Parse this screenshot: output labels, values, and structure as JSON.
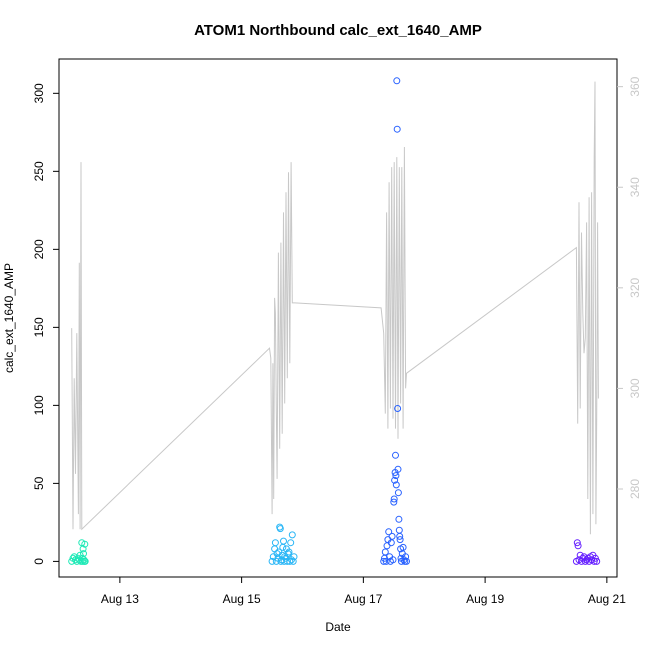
{
  "chart_data": {
    "type": "scatter",
    "title": "ATOM1 Northbound calc_ext_1640_AMP",
    "xlabel": "Date",
    "ylabel": "calc_ext_1640_AMP",
    "x_ticks": [
      "Aug 13",
      "Aug 15",
      "Aug 17",
      "Aug 19",
      "Aug 21"
    ],
    "y_ticks": [
      "0",
      "50",
      "100",
      "150",
      "200",
      "250",
      "300"
    ],
    "y2_ticks": [
      "280",
      "300",
      "320",
      "340",
      "360"
    ],
    "xlim": [
      "2023-08-12T00:00",
      "2023-08-21T04:00"
    ],
    "ylim": [
      -10,
      322
    ],
    "y2lim": [
      262.5,
      365.5
    ],
    "grid": false,
    "line_color": "#c8c8c8",
    "secondary_axis_color": "#c8c8c8",
    "scatter_series": [
      {
        "color": "#1de9b6",
        "points": [
          [
            "2023-08-12T05:00",
            0
          ],
          [
            "2023-08-12T05:30",
            2
          ],
          [
            "2023-08-12T06:00",
            3
          ],
          [
            "2023-08-12T06:30",
            1
          ],
          [
            "2023-08-12T07:00",
            0
          ],
          [
            "2023-08-12T07:30",
            2
          ],
          [
            "2023-08-12T08:00",
            1
          ],
          [
            "2023-08-12T08:20",
            4
          ],
          [
            "2023-08-12T08:40",
            0
          ],
          [
            "2023-08-12T09:00",
            12
          ],
          [
            "2023-08-12T09:10",
            2
          ],
          [
            "2023-08-12T09:20",
            0
          ],
          [
            "2023-08-12T09:30",
            8
          ],
          [
            "2023-08-12T09:40",
            5
          ],
          [
            "2023-08-12T09:50",
            1
          ],
          [
            "2023-08-12T10:00",
            0
          ],
          [
            "2023-08-12T10:10",
            11
          ],
          [
            "2023-08-12T10:20",
            0
          ]
        ]
      },
      {
        "color": "#29b6f6",
        "points": [
          [
            "2023-08-15T12:00",
            0
          ],
          [
            "2023-08-15T12:30",
            3
          ],
          [
            "2023-08-15T13:00",
            8
          ],
          [
            "2023-08-15T13:20",
            12
          ],
          [
            "2023-08-15T13:40",
            0
          ],
          [
            "2023-08-15T14:00",
            5
          ],
          [
            "2023-08-15T14:20",
            2
          ],
          [
            "2023-08-15T14:40",
            6
          ],
          [
            "2023-08-15T15:00",
            22
          ],
          [
            "2023-08-15T15:15",
            21
          ],
          [
            "2023-08-15T15:30",
            0
          ],
          [
            "2023-08-15T15:45",
            1
          ],
          [
            "2023-08-15T16:00",
            4
          ],
          [
            "2023-08-15T16:15",
            9
          ],
          [
            "2023-08-15T16:30",
            13
          ],
          [
            "2023-08-15T16:45",
            0
          ],
          [
            "2023-08-15T17:00",
            3
          ],
          [
            "2023-08-15T17:20",
            2
          ],
          [
            "2023-08-15T17:40",
            8
          ],
          [
            "2023-08-15T18:00",
            0
          ],
          [
            "2023-08-15T18:20",
            5
          ],
          [
            "2023-08-15T18:40",
            6
          ],
          [
            "2023-08-15T19:00",
            0
          ],
          [
            "2023-08-15T19:20",
            12
          ],
          [
            "2023-08-15T19:40",
            1
          ],
          [
            "2023-08-15T20:00",
            17
          ],
          [
            "2023-08-15T20:20",
            0
          ],
          [
            "2023-08-15T20:40",
            3
          ]
        ]
      },
      {
        "color": "#2962ff",
        "points": [
          [
            "2023-08-17T08:00",
            0
          ],
          [
            "2023-08-17T08:20",
            2
          ],
          [
            "2023-08-17T08:40",
            6
          ],
          [
            "2023-08-17T09:00",
            0
          ],
          [
            "2023-08-17T09:20",
            10
          ],
          [
            "2023-08-17T09:40",
            14
          ],
          [
            "2023-08-17T10:00",
            19
          ],
          [
            "2023-08-17T10:20",
            3
          ],
          [
            "2023-08-17T10:40",
            0
          ],
          [
            "2023-08-17T11:00",
            12
          ],
          [
            "2023-08-17T11:20",
            16
          ],
          [
            "2023-08-17T11:40",
            1
          ],
          [
            "2023-08-17T12:00",
            38
          ],
          [
            "2023-08-17T12:10",
            40
          ],
          [
            "2023-08-17T12:20",
            52
          ],
          [
            "2023-08-17T12:30",
            57
          ],
          [
            "2023-08-17T12:40",
            68
          ],
          [
            "2023-08-17T12:50",
            55
          ],
          [
            "2023-08-17T13:00",
            49
          ],
          [
            "2023-08-17T13:10",
            308
          ],
          [
            "2023-08-17T13:20",
            277
          ],
          [
            "2023-08-17T13:30",
            98
          ],
          [
            "2023-08-17T13:40",
            59
          ],
          [
            "2023-08-17T13:50",
            44
          ],
          [
            "2023-08-17T14:00",
            27
          ],
          [
            "2023-08-17T14:10",
            20
          ],
          [
            "2023-08-17T14:20",
            16
          ],
          [
            "2023-08-17T14:30",
            14
          ],
          [
            "2023-08-17T14:40",
            8
          ],
          [
            "2023-08-17T14:50",
            2
          ],
          [
            "2023-08-17T15:00",
            0
          ],
          [
            "2023-08-17T15:20",
            5
          ],
          [
            "2023-08-17T15:40",
            9
          ],
          [
            "2023-08-17T16:00",
            1
          ],
          [
            "2023-08-17T16:20",
            0
          ],
          [
            "2023-08-17T16:40",
            3
          ],
          [
            "2023-08-17T17:00",
            0
          ]
        ]
      },
      {
        "color": "#651fff",
        "points": [
          [
            "2023-08-20T12:00",
            0
          ],
          [
            "2023-08-20T12:20",
            12
          ],
          [
            "2023-08-20T12:40",
            10
          ],
          [
            "2023-08-20T13:00",
            1
          ],
          [
            "2023-08-20T13:30",
            4
          ],
          [
            "2023-08-20T14:00",
            0
          ],
          [
            "2023-08-20T14:30",
            2
          ],
          [
            "2023-08-20T15:00",
            3
          ],
          [
            "2023-08-20T15:30",
            0
          ],
          [
            "2023-08-20T16:00",
            1
          ],
          [
            "2023-08-20T16:30",
            2
          ],
          [
            "2023-08-20T17:00",
            0
          ],
          [
            "2023-08-20T17:30",
            3
          ],
          [
            "2023-08-20T18:00",
            1
          ],
          [
            "2023-08-20T18:30",
            4
          ],
          [
            "2023-08-20T19:00",
            0
          ],
          [
            "2023-08-20T19:30",
            2
          ],
          [
            "2023-08-20T20:00",
            0
          ]
        ]
      }
    ],
    "line_series": {
      "axis": "right",
      "points": [
        [
          "2023-08-12T05:00",
          312
        ],
        [
          "2023-08-12T05:30",
          272
        ],
        [
          "2023-08-12T06:00",
          302
        ],
        [
          "2023-08-12T06:30",
          283
        ],
        [
          "2023-08-12T07:00",
          311
        ],
        [
          "2023-08-12T07:40",
          275
        ],
        [
          "2023-08-12T08:00",
          325
        ],
        [
          "2023-08-12T08:20",
          272
        ],
        [
          "2023-08-12T08:40",
          345
        ],
        [
          "2023-08-12T09:00",
          272
        ],
        [
          "2023-08-15T11:00",
          308
        ],
        [
          "2023-08-15T11:30",
          306
        ],
        [
          "2023-08-15T12:00",
          275
        ],
        [
          "2023-08-15T12:20",
          305
        ],
        [
          "2023-08-15T12:40",
          278
        ],
        [
          "2023-08-15T13:00",
          318
        ],
        [
          "2023-08-15T13:20",
          315
        ],
        [
          "2023-08-15T13:40",
          296
        ],
        [
          "2023-08-15T14:00",
          282
        ],
        [
          "2023-08-15T14:30",
          327
        ],
        [
          "2023-08-15T15:00",
          288
        ],
        [
          "2023-08-15T15:30",
          329
        ],
        [
          "2023-08-15T16:00",
          291
        ],
        [
          "2023-08-15T16:30",
          335
        ],
        [
          "2023-08-15T17:00",
          297
        ],
        [
          "2023-08-15T17:30",
          339
        ],
        [
          "2023-08-15T18:00",
          302
        ],
        [
          "2023-08-15T18:30",
          343
        ],
        [
          "2023-08-15T19:00",
          305
        ],
        [
          "2023-08-15T19:30",
          345
        ],
        [
          "2023-08-15T20:00",
          317
        ],
        [
          "2023-08-15T21:00",
          317
        ],
        [
          "2023-08-17T07:00",
          316
        ],
        [
          "2023-08-17T08:00",
          311
        ],
        [
          "2023-08-17T08:40",
          295
        ],
        [
          "2023-08-17T09:10",
          335
        ],
        [
          "2023-08-17T09:40",
          292
        ],
        [
          "2023-08-17T10:10",
          341
        ],
        [
          "2023-08-17T10:40",
          296
        ],
        [
          "2023-08-17T11:10",
          344
        ],
        [
          "2023-08-17T11:40",
          294
        ],
        [
          "2023-08-17T12:10",
          345
        ],
        [
          "2023-08-17T12:40",
          292
        ],
        [
          "2023-08-17T13:10",
          346
        ],
        [
          "2023-08-17T13:40",
          290
        ],
        [
          "2023-08-17T14:10",
          344
        ],
        [
          "2023-08-17T14:40",
          297
        ],
        [
          "2023-08-17T15:10",
          344
        ],
        [
          "2023-08-17T15:40",
          292
        ],
        [
          "2023-08-17T16:10",
          348
        ],
        [
          "2023-08-17T16:40",
          300
        ],
        [
          "2023-08-17T17:00",
          303
        ],
        [
          "2023-08-20T12:00",
          328
        ],
        [
          "2023-08-20T12:30",
          293
        ],
        [
          "2023-08-20T13:00",
          337
        ],
        [
          "2023-08-20T13:30",
          296
        ],
        [
          "2023-08-20T14:00",
          331
        ],
        [
          "2023-08-20T14:30",
          315
        ],
        [
          "2023-08-20T15:00",
          307
        ],
        [
          "2023-08-20T15:30",
          310
        ],
        [
          "2023-08-20T16:00",
          333
        ],
        [
          "2023-08-20T16:30",
          278
        ],
        [
          "2023-08-20T17:00",
          338
        ],
        [
          "2023-08-20T17:30",
          271
        ],
        [
          "2023-08-20T18:00",
          339
        ],
        [
          "2023-08-20T18:30",
          275
        ],
        [
          "2023-08-20T19:00",
          346
        ],
        [
          "2023-08-20T19:20",
          361
        ],
        [
          "2023-08-20T19:40",
          273
        ],
        [
          "2023-08-20T20:00",
          294
        ],
        [
          "2023-08-20T20:20",
          333
        ],
        [
          "2023-08-20T20:40",
          298
        ]
      ]
    }
  }
}
